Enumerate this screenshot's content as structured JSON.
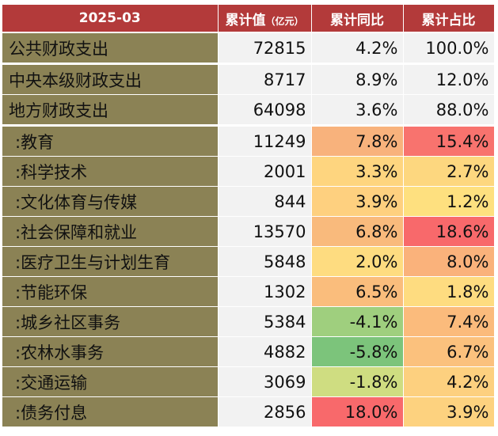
{
  "header": {
    "period": "2025-03",
    "col_value": "累计值",
    "col_value_unit": "（亿元）",
    "col_yoy": "累计同比",
    "col_share": "累计占比"
  },
  "colors": {
    "header_bg": "#b33a3a",
    "name_bg": "#8b8255",
    "value_bg": "#f2f2f2"
  },
  "rows": [
    {
      "name": "公共财政支出",
      "value": "72815",
      "yoy": "4.2%",
      "share": "100.0%",
      "yoy_color": "#f2f2f2",
      "share_color": "#f2f2f2"
    },
    {
      "name": "中央本级财政支出",
      "value": "8717",
      "yoy": "8.9%",
      "share": "12.0%",
      "yoy_color": "#f2f2f2",
      "share_color": "#f2f2f2"
    },
    {
      "name": "地方财政支出",
      "value": "64098",
      "yoy": "3.6%",
      "share": "88.0%",
      "yoy_color": "#f2f2f2",
      "share_color": "#f2f2f2"
    },
    {
      "name": "  :教育",
      "value": "11249",
      "yoy": "7.8%",
      "share": "15.4%",
      "yoy_color": "#f8b27c",
      "share_color": "#f8736e"
    },
    {
      "name": "  :科学技术",
      "value": "2001",
      "yoy": "3.3%",
      "share": "2.7%",
      "yoy_color": "#fed57f",
      "share_color": "#fdd77f"
    },
    {
      "name": "  :文化体育与传媒",
      "value": "844",
      "yoy": "3.9%",
      "share": "1.2%",
      "yoy_color": "#fed07f",
      "share_color": "#fee07f"
    },
    {
      "name": "  :社会保障和就业",
      "value": "13570",
      "yoy": "6.8%",
      "share": "18.6%",
      "yoy_color": "#f9ba7c",
      "share_color": "#f8696b"
    },
    {
      "name": "  :医疗卫生与计划生育",
      "value": "5848",
      "yoy": "2.0%",
      "share": "8.0%",
      "yoy_color": "#fedc80",
      "share_color": "#fab27b"
    },
    {
      "name": "  :节能环保",
      "value": "1302",
      "yoy": "6.5%",
      "share": "1.8%",
      "yoy_color": "#fabd7c",
      "share_color": "#fedc80"
    },
    {
      "name": "  :城乡社区事务",
      "value": "5384",
      "yoy": "-4.1%",
      "share": "7.4%",
      "yoy_color": "#9fcf7e",
      "share_color": "#fbbb7c"
    },
    {
      "name": "  :农林水事务",
      "value": "4882",
      "yoy": "-5.8%",
      "share": "6.7%",
      "yoy_color": "#7cc47b",
      "share_color": "#fbc17d"
    },
    {
      "name": "  :交通运输",
      "value": "3069",
      "yoy": "-1.8%",
      "share": "4.2%",
      "yoy_color": "#cfdd81",
      "share_color": "#fdd07f"
    },
    {
      "name": "  :债务付息",
      "value": "2856",
      "yoy": "18.0%",
      "share": "3.9%",
      "yoy_color": "#f8696b",
      "share_color": "#fdd27f"
    }
  ]
}
